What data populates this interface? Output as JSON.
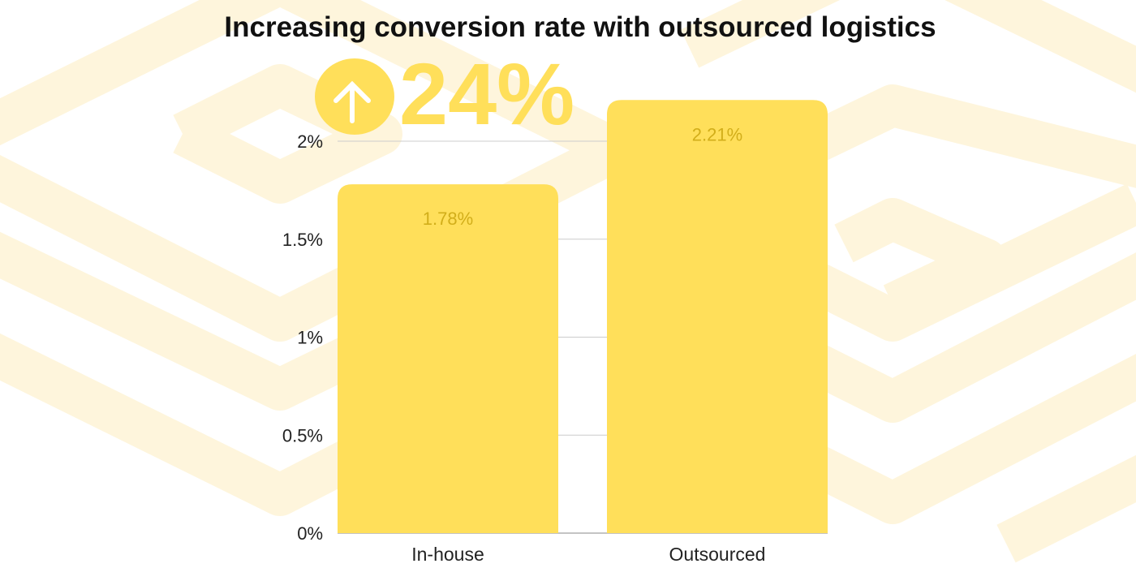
{
  "highlight": {
    "icon": "arrow-up-circle-icon",
    "value": "24%"
  },
  "colors": {
    "bar": "#FFDF5A",
    "data_label": "#D2AE1A",
    "background_pattern": "#FEF5DC",
    "grid": "#CCCCCC"
  },
  "chart_data": {
    "type": "bar",
    "title": "Increasing conversion rate with outsourced logistics",
    "categories": [
      "In-house",
      "Outsourced"
    ],
    "values": [
      1.78,
      2.21
    ],
    "data_labels": [
      "1.78%",
      "2.21%"
    ],
    "xlabel": "",
    "ylabel": "",
    "ylim": [
      0,
      2
    ],
    "yticks": [
      0,
      0.5,
      1,
      1.5,
      2
    ],
    "ytick_labels": [
      "0%",
      "0.5%",
      "1%",
      "1.5%",
      "2%"
    ],
    "grid": true
  }
}
